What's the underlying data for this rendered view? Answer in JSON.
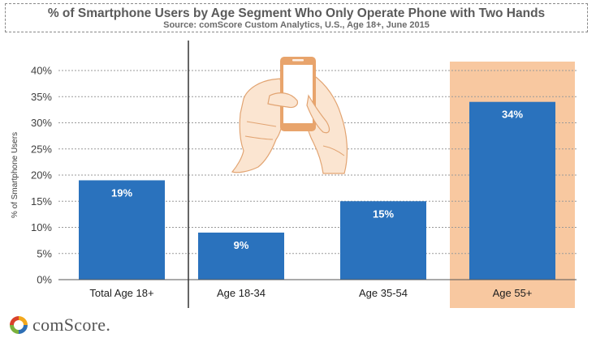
{
  "chart_data": {
    "type": "bar",
    "title": "% of Smartphone Users by Age Segment Who Only Operate Phone with Two Hands",
    "subtitle": "Source: comScore Custom Analytics, U.S., Age 18+, June 2015",
    "ylabel": "% of Smartphone Users",
    "xlabel": "",
    "categories": [
      "Total Age 18+",
      "Age 18-34",
      "Age 35-54",
      "Age 55+"
    ],
    "values": [
      19,
      9,
      15,
      34
    ],
    "data_labels": [
      "19%",
      "9%",
      "15%",
      "34%"
    ],
    "ylim": [
      0,
      40
    ],
    "yticks": [
      0,
      5,
      10,
      15,
      20,
      25,
      30,
      35,
      40
    ],
    "ytick_labels": [
      "0%",
      "5%",
      "10%",
      "15%",
      "20%",
      "25%",
      "30%",
      "35%",
      "40%"
    ],
    "highlighted_category": "Age 55+",
    "grid": true,
    "colors": {
      "bar": "#2a72bd",
      "highlight": "#f8c8a0",
      "grid": "#9a9a9a",
      "label_text": "#ffffff",
      "illustration": "#e8a46c"
    }
  },
  "brand": {
    "logo_text": "comScore."
  }
}
